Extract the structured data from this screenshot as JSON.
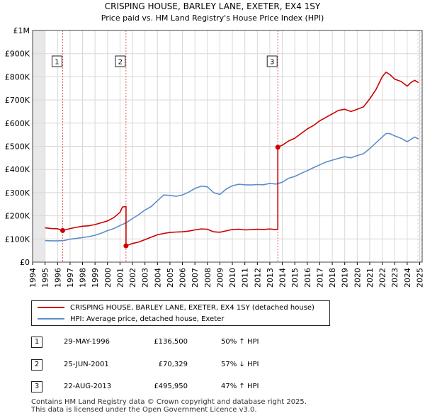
{
  "chart_data": {
    "type": "line",
    "title": "CRISPING HOUSE, BARLEY LANE, EXETER, EX4 1SY",
    "subtitle": "Price paid vs. HM Land Registry's House Price Index (HPI)",
    "xlabel": "",
    "ylabel": "",
    "xlim": [
      1994,
      2025.2
    ],
    "ylim": [
      0,
      1000000
    ],
    "y_ticks": [
      0,
      100000,
      200000,
      300000,
      400000,
      500000,
      600000,
      700000,
      800000,
      900000,
      1000000
    ],
    "y_tick_labels": [
      "£0",
      "£100K",
      "£200K",
      "£300K",
      "£400K",
      "£500K",
      "£600K",
      "£700K",
      "£800K",
      "£900K",
      "£1M"
    ],
    "x_ticks": [
      1994,
      1995,
      1996,
      1997,
      1998,
      1999,
      2000,
      2001,
      2002,
      2003,
      2004,
      2005,
      2006,
      2007,
      2008,
      2009,
      2010,
      2011,
      2012,
      2013,
      2014,
      2015,
      2016,
      2017,
      2018,
      2019,
      2020,
      2021,
      2022,
      2023,
      2024,
      2025
    ],
    "x_tick_labels": [
      "1994",
      "1995",
      "1996",
      "1997",
      "1998",
      "1999",
      "2000",
      "2001",
      "2002",
      "2003",
      "2004",
      "2005",
      "2006",
      "2007",
      "2008",
      "2009",
      "2010",
      "2011",
      "2012",
      "2013",
      "2014",
      "2015",
      "2016",
      "2017",
      "2018",
      "2019",
      "2020",
      "2021",
      "2022",
      "2023",
      "2024",
      "2025"
    ],
    "grid": true,
    "shaded_region": [
      1994,
      1995
    ],
    "hatched_region": [
      2024.8,
      2025.2
    ],
    "series": [
      {
        "name": "CRISPING HOUSE, BARLEY LANE, EXETER, EX4 1SY (detached house)",
        "color": "#cc0000",
        "x": [
          1995.0,
          1995.5,
          1996.0,
          1996.41,
          1997.0,
          1997.5,
          1998.0,
          1998.5,
          1999.0,
          1999.5,
          2000.0,
          2000.5,
          2001.0,
          2001.2,
          2001.48,
          2001.48,
          2001.9,
          2002.5,
          2003.0,
          2003.5,
          2004.0,
          2004.5,
          2005.0,
          2005.5,
          2006.0,
          2006.5,
          2007.0,
          2007.5,
          2008.0,
          2008.5,
          2009.0,
          2009.5,
          2010.0,
          2010.5,
          2011.0,
          2011.5,
          2012.0,
          2012.5,
          2013.0,
          2013.4,
          2013.64,
          2013.64,
          2014.0,
          2014.5,
          2015.0,
          2015.5,
          2016.0,
          2016.5,
          2017.0,
          2017.5,
          2018.0,
          2018.5,
          2019.0,
          2019.5,
          2020.0,
          2020.5,
          2021.0,
          2021.5,
          2022.0,
          2022.3,
          2022.6,
          2023.0,
          2023.5,
          2024.0,
          2024.3,
          2024.6,
          2024.9
        ],
        "values": [
          148000,
          145000,
          144000,
          136500,
          145000,
          150000,
          155000,
          157000,
          162000,
          170000,
          178000,
          192000,
          215000,
          238000,
          240000,
          70329,
          79000,
          87000,
          97000,
          108000,
          118000,
          124000,
          128000,
          130000,
          131000,
          134000,
          139000,
          143000,
          142000,
          131000,
          129000,
          135000,
          141000,
          142000,
          139000,
          140000,
          142000,
          141000,
          143000,
          141000,
          142000,
          495950,
          505000,
          523000,
          535000,
          555000,
          575000,
          590000,
          610000,
          625000,
          640000,
          655000,
          660000,
          650000,
          660000,
          670000,
          705000,
          745000,
          800000,
          820000,
          810000,
          790000,
          780000,
          760000,
          775000,
          785000,
          775000
        ]
      },
      {
        "name": "HPI: Average price, detached house, Exeter",
        "color": "#5b8ec9",
        "x": [
          1995.0,
          1995.5,
          1996.0,
          1996.5,
          1997.0,
          1997.5,
          1998.0,
          1998.5,
          1999.0,
          1999.5,
          2000.0,
          2000.5,
          2001.0,
          2001.5,
          2002.0,
          2002.5,
          2003.0,
          2003.5,
          2004.0,
          2004.5,
          2005.0,
          2005.5,
          2006.0,
          2006.5,
          2007.0,
          2007.5,
          2008.0,
          2008.5,
          2009.0,
          2009.5,
          2010.0,
          2010.5,
          2011.0,
          2011.5,
          2012.0,
          2012.5,
          2013.0,
          2013.5,
          2014.0,
          2014.5,
          2015.0,
          2015.5,
          2016.0,
          2016.5,
          2017.0,
          2017.5,
          2018.0,
          2018.5,
          2019.0,
          2019.5,
          2020.0,
          2020.5,
          2021.0,
          2021.5,
          2022.0,
          2022.3,
          2022.6,
          2023.0,
          2023.5,
          2024.0,
          2024.3,
          2024.6,
          2024.9
        ],
        "values": [
          93000,
          92000,
          92000,
          93000,
          99000,
          102000,
          106000,
          110000,
          116000,
          125000,
          136000,
          145000,
          158000,
          170000,
          188000,
          205000,
          225000,
          240000,
          265000,
          290000,
          288000,
          284000,
          290000,
          302000,
          318000,
          328000,
          325000,
          300000,
          292000,
          315000,
          330000,
          336000,
          334000,
          333000,
          335000,
          334000,
          340000,
          337000,
          345000,
          362000,
          370000,
          383000,
          395000,
          408000,
          420000,
          432000,
          440000,
          448000,
          455000,
          450000,
          460000,
          468000,
          490000,
          515000,
          540000,
          555000,
          555000,
          545000,
          535000,
          520000,
          530000,
          540000,
          532000
        ]
      }
    ],
    "markers": [
      {
        "label": "1",
        "x": 1996.41,
        "y": 136500
      },
      {
        "label": "2",
        "x": 2001.48,
        "y": 70329
      },
      {
        "label": "3",
        "x": 2013.64,
        "y": 495950
      }
    ]
  },
  "legend": {
    "items": [
      {
        "label": "CRISPING HOUSE, BARLEY LANE, EXETER, EX4 1SY (detached house)",
        "color": "#cc0000"
      },
      {
        "label": "HPI: Average price, detached house, Exeter",
        "color": "#5b8ec9"
      }
    ]
  },
  "transactions": [
    {
      "num": "1",
      "date": "29-MAY-1996",
      "price": "£136,500",
      "hpi": "50% ↑ HPI"
    },
    {
      "num": "2",
      "date": "25-JUN-2001",
      "price": "£70,329",
      "hpi": "57% ↓ HPI"
    },
    {
      "num": "3",
      "date": "22-AUG-2013",
      "price": "£495,950",
      "hpi": "47% ↑ HPI"
    }
  ],
  "footer": {
    "line1": "Contains HM Land Registry data © Crown copyright and database right 2025.",
    "line2": "This data is licensed under the Open Government Licence v3.0."
  }
}
